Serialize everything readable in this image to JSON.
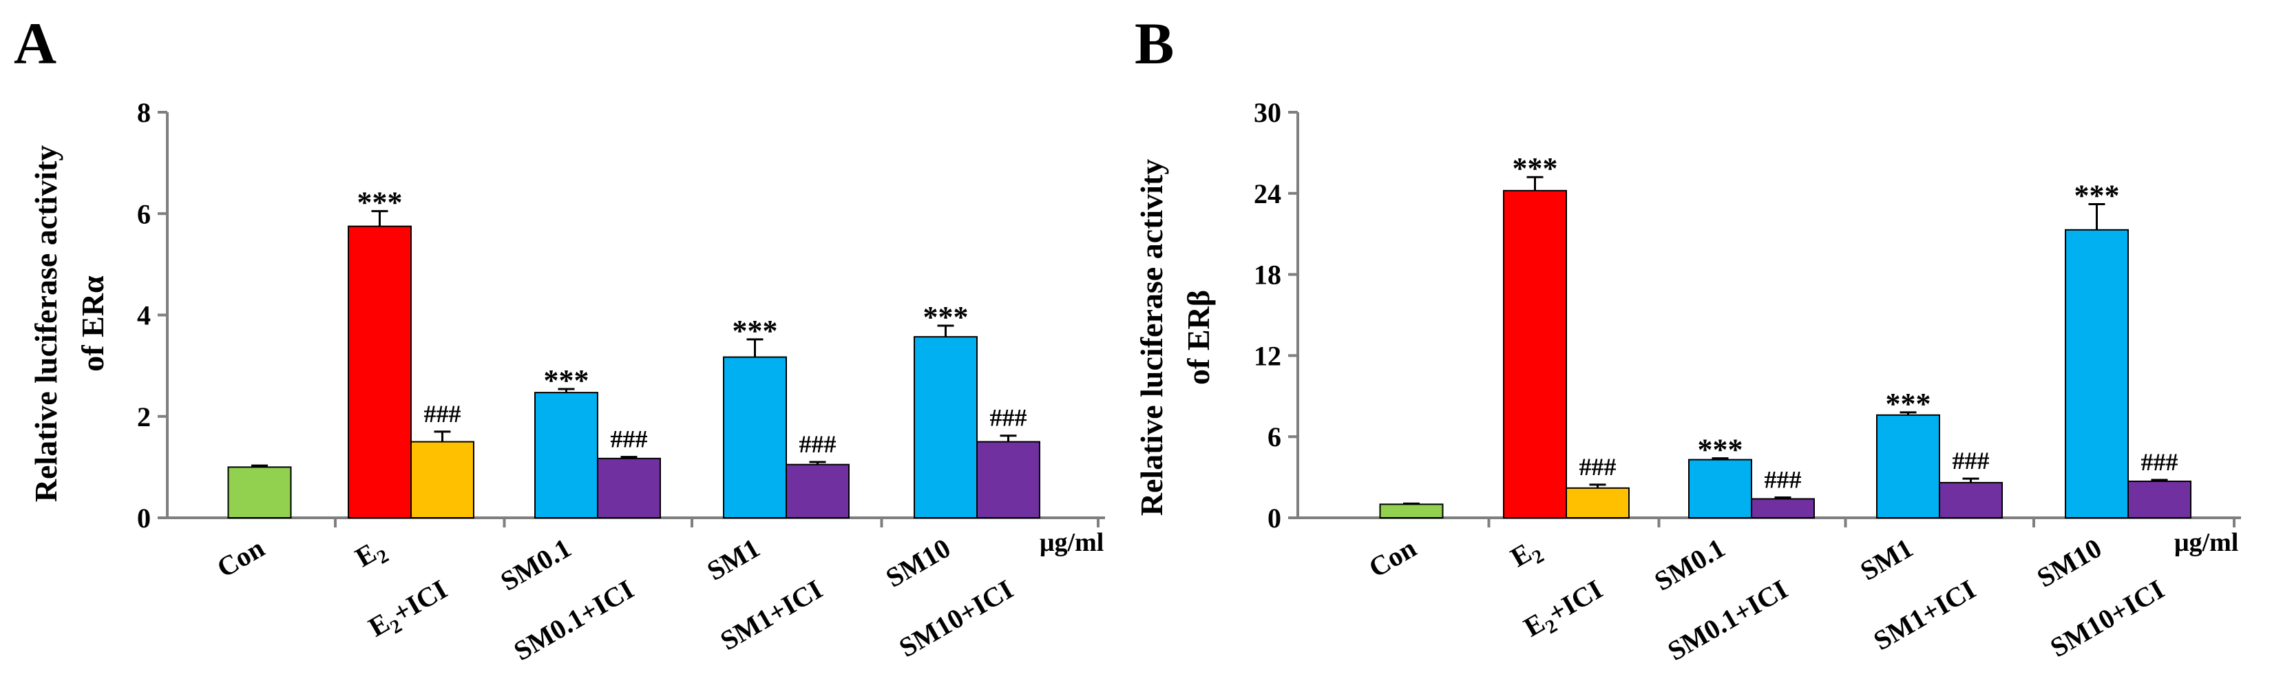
{
  "chart_data": [
    {
      "panel_label": "A",
      "type": "bar",
      "ylabel_line1": "Relative luciferase activity",
      "ylabel_line2_prefix": "of ER",
      "ylabel_line2_symbol": "α",
      "unit_label": "μg/ml",
      "ylim": [
        0,
        8
      ],
      "yticks": [
        0,
        2,
        4,
        6,
        8
      ],
      "groups": [
        {
          "top": "Con",
          "bottom": null,
          "bottom_sub": null,
          "bottom_suffix": null
        },
        {
          "top": "E",
          "top_sub": "2",
          "bottom": "E",
          "bottom_sub": "2",
          "bottom_suffix": "+ICI"
        },
        {
          "top": "SM0.1",
          "bottom": "SM0.1+ICI"
        },
        {
          "top": "SM1",
          "bottom": "SM1+ICI"
        },
        {
          "top": "SM10",
          "bottom": "SM10+ICI"
        }
      ],
      "bars": [
        {
          "group": 0,
          "slot": "center",
          "value": 1.0,
          "error": 0.03,
          "color": "#92d050",
          "annotation": ""
        },
        {
          "group": 1,
          "slot": "left",
          "value": 5.75,
          "error": 0.3,
          "color": "#ff0000",
          "annotation": "***"
        },
        {
          "group": 1,
          "slot": "right",
          "value": 1.5,
          "error": 0.2,
          "color": "#ffc000",
          "annotation": "###"
        },
        {
          "group": 2,
          "slot": "left",
          "value": 2.47,
          "error": 0.07,
          "color": "#00b0f0",
          "annotation": "***"
        },
        {
          "group": 2,
          "slot": "right",
          "value": 1.17,
          "error": 0.03,
          "color": "#7030a0",
          "annotation": "###"
        },
        {
          "group": 3,
          "slot": "left",
          "value": 3.17,
          "error": 0.35,
          "color": "#00b0f0",
          "annotation": "***"
        },
        {
          "group": 3,
          "slot": "right",
          "value": 1.05,
          "error": 0.05,
          "color": "#7030a0",
          "annotation": "###"
        },
        {
          "group": 4,
          "slot": "left",
          "value": 3.57,
          "error": 0.22,
          "color": "#00b0f0",
          "annotation": "***"
        },
        {
          "group": 4,
          "slot": "right",
          "value": 1.5,
          "error": 0.12,
          "color": "#7030a0",
          "annotation": "###"
        }
      ]
    },
    {
      "panel_label": "B",
      "type": "bar",
      "ylabel_line1": "Relative luciferase activity",
      "ylabel_line2_prefix": "of ER",
      "ylabel_line2_symbol": "β",
      "unit_label": "μg/ml",
      "ylim": [
        0,
        30
      ],
      "yticks": [
        0,
        6,
        12,
        18,
        24,
        30
      ],
      "groups": [
        {
          "top": "Con",
          "bottom": null,
          "bottom_sub": null,
          "bottom_suffix": null
        },
        {
          "top": "E",
          "top_sub": "2",
          "bottom": "E",
          "bottom_sub": "2",
          "bottom_suffix": "+ICI"
        },
        {
          "top": "SM0.1",
          "bottom": "SM0.1+ICI"
        },
        {
          "top": "SM1",
          "bottom": "SM1+ICI"
        },
        {
          "top": "SM10",
          "bottom": "SM10+ICI"
        }
      ],
      "bars": [
        {
          "group": 0,
          "slot": "center",
          "value": 1.0,
          "error": 0.05,
          "color": "#92d050",
          "annotation": ""
        },
        {
          "group": 1,
          "slot": "left",
          "value": 24.2,
          "error": 1.0,
          "color": "#ff0000",
          "annotation": "***"
        },
        {
          "group": 1,
          "slot": "right",
          "value": 2.2,
          "error": 0.25,
          "color": "#ffc000",
          "annotation": "###"
        },
        {
          "group": 2,
          "slot": "left",
          "value": 4.3,
          "error": 0.1,
          "color": "#00b0f0",
          "annotation": "***"
        },
        {
          "group": 2,
          "slot": "right",
          "value": 1.4,
          "error": 0.1,
          "color": "#7030a0",
          "annotation": "###"
        },
        {
          "group": 3,
          "slot": "left",
          "value": 7.6,
          "error": 0.2,
          "color": "#00b0f0",
          "annotation": "***"
        },
        {
          "group": 3,
          "slot": "right",
          "value": 2.6,
          "error": 0.3,
          "color": "#7030a0",
          "annotation": "###"
        },
        {
          "group": 4,
          "slot": "left",
          "value": 21.3,
          "error": 1.9,
          "color": "#00b0f0",
          "annotation": "***"
        },
        {
          "group": 4,
          "slot": "right",
          "value": 2.7,
          "error": 0.1,
          "color": "#7030a0",
          "annotation": "###"
        }
      ]
    }
  ]
}
